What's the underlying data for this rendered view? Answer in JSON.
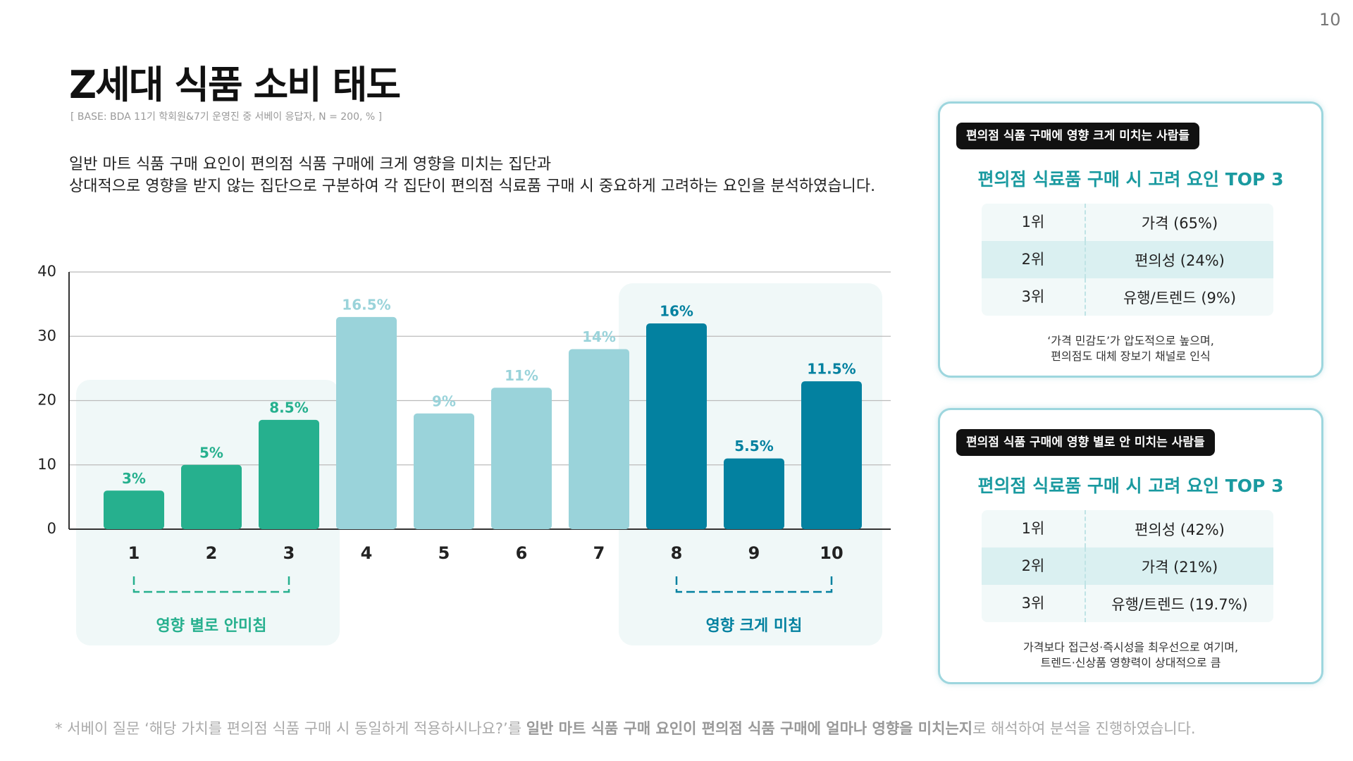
{
  "page_number": "10",
  "header": {
    "title": "Z세대 식품 소비 태도",
    "base": "[ BASE: BDA 11기 학회원&7기 운영진 중 서베이 응답자, N = 200, % ]",
    "description": [
      "일반 마트 식품 구매 요인이 편의점 식품 구매에 크게 영향을 미치는 집단과",
      "상대적으로 영향을 받지 않는 집단으로 구분하여 각 집단이 편의점 식료품 구매 시 중요하게 고려하는 요인을 분석하였습니다."
    ]
  },
  "chart_data": {
    "type": "bar",
    "categories": [
      "1",
      "2",
      "3",
      "4",
      "5",
      "6",
      "7",
      "8",
      "9",
      "10"
    ],
    "values": [
      6,
      10,
      17,
      33,
      18,
      22,
      28,
      32,
      11,
      23
    ],
    "value_labels": [
      "3%",
      "5%",
      "8.5%",
      "16.5%",
      "9%",
      "11%",
      "14%",
      "16%",
      "5.5%",
      "11.5%"
    ],
    "colors": [
      "#26b08e",
      "#26b08e",
      "#26b08e",
      "#9ad3da",
      "#9ad3da",
      "#9ad3da",
      "#9ad3da",
      "#0381a0",
      "#0381a0",
      "#0381a0"
    ],
    "ylim": [
      0,
      40
    ],
    "yticks": [
      0,
      10,
      20,
      30,
      40
    ],
    "grid": true,
    "groups": [
      {
        "label": "영향 별로 안미침",
        "color": "#26b08e"
      },
      {
        "label": "영향 크게 미침",
        "color": "#0381a0"
      }
    ]
  },
  "cards": [
    {
      "tag": "편의점 식품 구매에 영향 크게 미치는 사람들",
      "heading": "편의점 식료품 구매 시 고려 요인 TOP 3",
      "rows": [
        [
          "1위",
          "가격 (65%)"
        ],
        [
          "2위",
          "편의성 (24%)"
        ],
        [
          "3위",
          "유행/트렌드 (9%)"
        ]
      ],
      "note": [
        "‘가격 민감도’가 압도적으로 높으며,",
        "편의점도 대체 장보기 채널로 인식"
      ]
    },
    {
      "tag": "편의점 식품 구매에 영향 별로 안 미치는 사람들",
      "heading": "편의점 식료품 구매 시 고려 요인 TOP 3",
      "rows": [
        [
          "1위",
          "편의성 (42%)"
        ],
        [
          "2위",
          "가격 (21%)"
        ],
        [
          "3위",
          "유행/트렌드 (19.7%)"
        ]
      ],
      "note": [
        "가격보다 접근성·즉시성을 최우선으로 여기며,",
        "트렌드·신상품 영향력이 상대적으로 큼"
      ]
    }
  ],
  "footnote": [
    {
      "text": "* 서베이 질문 ‘해당 가치를 편의점 식품 구매 시 동일하게 적용하시나요?’를 ",
      "bold": false
    },
    {
      "text": "일반 마트 식품 구매 요인이 편의점 식품 구매에 얼마나 영향을 미치는지",
      "bold": true
    },
    {
      "text": "로 해석하여 분석을 진행하였습니다.",
      "bold": false
    }
  ]
}
